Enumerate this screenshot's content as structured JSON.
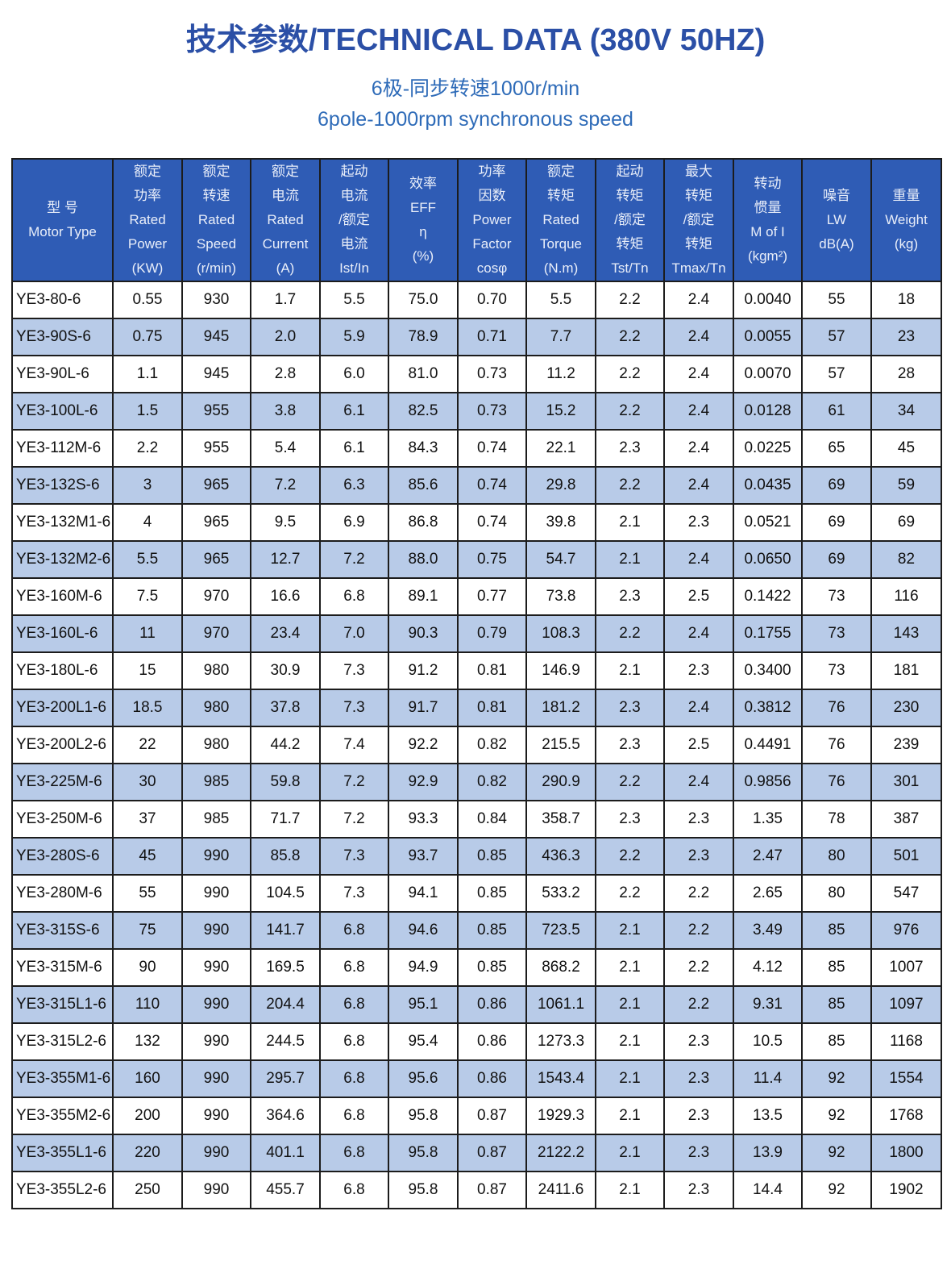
{
  "title": "技术参数/TECHNICAL DATA (380V 50HZ)",
  "subtitle_cn": "6极-同步转速1000r/min",
  "subtitle_en": "6pole-1000rpm synchronous speed",
  "colors": {
    "title": "#2b4fa6",
    "header_bg": "#2f5cb5",
    "row_alt_bg": "#b8cbe8"
  },
  "headers": [
    {
      "lines": [
        "型 号",
        "Motor Type"
      ]
    },
    {
      "lines": [
        "额定",
        "功率",
        "Rated",
        "Power",
        "(KW)"
      ]
    },
    {
      "lines": [
        "额定",
        "转速",
        "Rated",
        "Speed",
        "(r/min)"
      ]
    },
    {
      "lines": [
        "额定",
        "电流",
        "Rated",
        "Current",
        "(A)"
      ]
    },
    {
      "lines": [
        "起动",
        "电流",
        "/额定",
        "电流",
        "Ist/In"
      ]
    },
    {
      "lines": [
        "效率",
        "EFF",
        "η",
        "(%)"
      ]
    },
    {
      "lines": [
        "功率",
        "因数",
        "Power",
        "Factor",
        "cosφ"
      ]
    },
    {
      "lines": [
        "额定",
        "转矩",
        "Rated",
        "Torque",
        "(N.m)"
      ]
    },
    {
      "lines": [
        "起动",
        "转矩",
        "/额定",
        "转矩",
        "Tst/Tn"
      ]
    },
    {
      "lines": [
        "最大",
        "转矩",
        "/额定",
        "转矩",
        "Tmax/Tn"
      ]
    },
    {
      "lines": [
        "转动",
        "惯量",
        "M of I",
        "(kgm²)"
      ]
    },
    {
      "lines": [
        "噪音",
        "LW",
        "dB(A)"
      ]
    },
    {
      "lines": [
        "重量",
        "Weight",
        "(kg)"
      ]
    }
  ],
  "rows": [
    [
      "YE3-80-6",
      "0.55",
      "930",
      "1.7",
      "5.5",
      "75.0",
      "0.70",
      "5.5",
      "2.2",
      "2.4",
      "0.0040",
      "55",
      "18"
    ],
    [
      "YE3-90S-6",
      "0.75",
      "945",
      "2.0",
      "5.9",
      "78.9",
      "0.71",
      "7.7",
      "2.2",
      "2.4",
      "0.0055",
      "57",
      "23"
    ],
    [
      "YE3-90L-6",
      "1.1",
      "945",
      "2.8",
      "6.0",
      "81.0",
      "0.73",
      "11.2",
      "2.2",
      "2.4",
      "0.0070",
      "57",
      "28"
    ],
    [
      "YE3-100L-6",
      "1.5",
      "955",
      "3.8",
      "6.1",
      "82.5",
      "0.73",
      "15.2",
      "2.2",
      "2.4",
      "0.0128",
      "61",
      "34"
    ],
    [
      "YE3-112M-6",
      "2.2",
      "955",
      "5.4",
      "6.1",
      "84.3",
      "0.74",
      "22.1",
      "2.3",
      "2.4",
      "0.0225",
      "65",
      "45"
    ],
    [
      "YE3-132S-6",
      "3",
      "965",
      "7.2",
      "6.3",
      "85.6",
      "0.74",
      "29.8",
      "2.2",
      "2.4",
      "0.0435",
      "69",
      "59"
    ],
    [
      "YE3-132M1-6",
      "4",
      "965",
      "9.5",
      "6.9",
      "86.8",
      "0.74",
      "39.8",
      "2.1",
      "2.3",
      "0.0521",
      "69",
      "69"
    ],
    [
      "YE3-132M2-6",
      "5.5",
      "965",
      "12.7",
      "7.2",
      "88.0",
      "0.75",
      "54.7",
      "2.1",
      "2.4",
      "0.0650",
      "69",
      "82"
    ],
    [
      "YE3-160M-6",
      "7.5",
      "970",
      "16.6",
      "6.8",
      "89.1",
      "0.77",
      "73.8",
      "2.3",
      "2.5",
      "0.1422",
      "73",
      "116"
    ],
    [
      "YE3-160L-6",
      "11",
      "970",
      "23.4",
      "7.0",
      "90.3",
      "0.79",
      "108.3",
      "2.2",
      "2.4",
      "0.1755",
      "73",
      "143"
    ],
    [
      "YE3-180L-6",
      "15",
      "980",
      "30.9",
      "7.3",
      "91.2",
      "0.81",
      "146.9",
      "2.1",
      "2.3",
      "0.3400",
      "73",
      "181"
    ],
    [
      "YE3-200L1-6",
      "18.5",
      "980",
      "37.8",
      "7.3",
      "91.7",
      "0.81",
      "181.2",
      "2.3",
      "2.4",
      "0.3812",
      "76",
      "230"
    ],
    [
      "YE3-200L2-6",
      "22",
      "980",
      "44.2",
      "7.4",
      "92.2",
      "0.82",
      "215.5",
      "2.3",
      "2.5",
      "0.4491",
      "76",
      "239"
    ],
    [
      "YE3-225M-6",
      "30",
      "985",
      "59.8",
      "7.2",
      "92.9",
      "0.82",
      "290.9",
      "2.2",
      "2.4",
      "0.9856",
      "76",
      "301"
    ],
    [
      "YE3-250M-6",
      "37",
      "985",
      "71.7",
      "7.2",
      "93.3",
      "0.84",
      "358.7",
      "2.3",
      "2.3",
      "1.35",
      "78",
      "387"
    ],
    [
      "YE3-280S-6",
      "45",
      "990",
      "85.8",
      "7.3",
      "93.7",
      "0.85",
      "436.3",
      "2.2",
      "2.3",
      "2.47",
      "80",
      "501"
    ],
    [
      "YE3-280M-6",
      "55",
      "990",
      "104.5",
      "7.3",
      "94.1",
      "0.85",
      "533.2",
      "2.2",
      "2.2",
      "2.65",
      "80",
      "547"
    ],
    [
      "YE3-315S-6",
      "75",
      "990",
      "141.7",
      "6.8",
      "94.6",
      "0.85",
      "723.5",
      "2.1",
      "2.2",
      "3.49",
      "85",
      "976"
    ],
    [
      "YE3-315M-6",
      "90",
      "990",
      "169.5",
      "6.8",
      "94.9",
      "0.85",
      "868.2",
      "2.1",
      "2.2",
      "4.12",
      "85",
      "1007"
    ],
    [
      "YE3-315L1-6",
      "110",
      "990",
      "204.4",
      "6.8",
      "95.1",
      "0.86",
      "1061.1",
      "2.1",
      "2.2",
      "9.31",
      "85",
      "1097"
    ],
    [
      "YE3-315L2-6",
      "132",
      "990",
      "244.5",
      "6.8",
      "95.4",
      "0.86",
      "1273.3",
      "2.1",
      "2.3",
      "10.5",
      "85",
      "1168"
    ],
    [
      "YE3-355M1-6",
      "160",
      "990",
      "295.7",
      "6.8",
      "95.6",
      "0.86",
      "1543.4",
      "2.1",
      "2.3",
      "11.4",
      "92",
      "1554"
    ],
    [
      "YE3-355M2-6",
      "200",
      "990",
      "364.6",
      "6.8",
      "95.8",
      "0.87",
      "1929.3",
      "2.1",
      "2.3",
      "13.5",
      "92",
      "1768"
    ],
    [
      "YE3-355L1-6",
      "220",
      "990",
      "401.1",
      "6.8",
      "95.8",
      "0.87",
      "2122.2",
      "2.1",
      "2.3",
      "13.9",
      "92",
      "1800"
    ],
    [
      "YE3-355L2-6",
      "250",
      "990",
      "455.7",
      "6.8",
      "95.8",
      "0.87",
      "2411.6",
      "2.1",
      "2.3",
      "14.4",
      "92",
      "1902"
    ]
  ]
}
